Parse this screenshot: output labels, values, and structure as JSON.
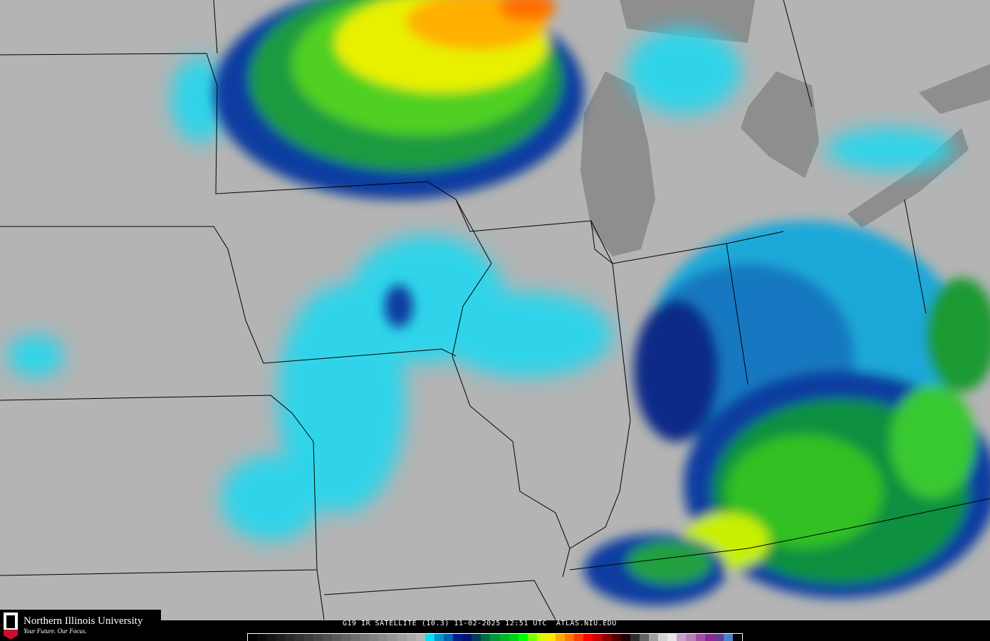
{
  "branding": {
    "university": "Northern Illinois University",
    "tagline": "Your Future. Our Focus.",
    "badge": "NIU",
    "colors": {
      "red": "#c8102e",
      "black": "#000000"
    }
  },
  "caption": {
    "product": "G19 IR SATELLITE (10.3)",
    "date": "11-02-2025",
    "time": "12:51 UTC",
    "site": "ATLAS.NIU.EDU"
  },
  "colorbar": {
    "colors": [
      "#000000",
      "#0a0a0a",
      "#141414",
      "#1e1e1e",
      "#282828",
      "#323232",
      "#3c3c3c",
      "#464646",
      "#505050",
      "#5a5a5a",
      "#646464",
      "#6e6e6e",
      "#787878",
      "#828282",
      "#8c8c8c",
      "#969696",
      "#a0a0a0",
      "#aaaaaa",
      "#b4b4b4",
      "#00e0ff",
      "#0096c8",
      "#0064b4",
      "#001e8c",
      "#00146e",
      "#003c5a",
      "#006e3c",
      "#00963c",
      "#00b428",
      "#00d214",
      "#00ff00",
      "#78ff00",
      "#d2ff00",
      "#ffe600",
      "#ffaa00",
      "#ff7800",
      "#ff3c00",
      "#ff0000",
      "#c80000",
      "#8c0000",
      "#500000",
      "#1e0000",
      "#2d2d2d",
      "#646464",
      "#a0a0a0",
      "#d2d2d2",
      "#e6e6e6",
      "#c8a0c8",
      "#b482b4",
      "#a050a0",
      "#8c2896",
      "#643c96",
      "#4682c8",
      "#000000"
    ]
  }
}
